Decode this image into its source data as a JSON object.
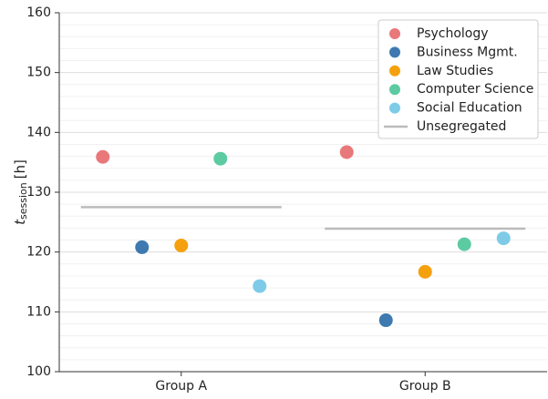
{
  "chart_data": {
    "type": "dot",
    "y_label": {
      "symbol": "t",
      "subscript": "session",
      "unit": "[h]"
    },
    "categories": [
      "Group A",
      "Group B"
    ],
    "series": [
      {
        "name": "Psychology",
        "color": "#e8787a",
        "values": [
          135.9,
          136.7
        ]
      },
      {
        "name": "Business Mgmt.",
        "color": "#3e7ab0",
        "values": [
          120.8,
          108.6
        ]
      },
      {
        "name": "Law Studies",
        "color": "#f5a10e",
        "values": [
          121.1,
          116.7
        ]
      },
      {
        "name": "Computer Science",
        "color": "#5dcba1",
        "values": [
          135.6,
          121.3
        ]
      },
      {
        "name": "Social Education",
        "color": "#7ecbe8",
        "values": [
          114.3,
          122.3
        ]
      }
    ],
    "reference": {
      "name": "Unsegregated",
      "color": "#bbbbbb",
      "values": [
        127.5,
        123.9
      ]
    },
    "ylim": [
      100,
      160
    ],
    "yticks": [
      100,
      110,
      120,
      130,
      140,
      150,
      160
    ],
    "minor_yticks": [
      102,
      104,
      106,
      108,
      112,
      114,
      116,
      118,
      122,
      124,
      126,
      128,
      132,
      134,
      136,
      138,
      142,
      144,
      146,
      148,
      152,
      154,
      156,
      158
    ],
    "grid": true,
    "legend": "upper right"
  }
}
